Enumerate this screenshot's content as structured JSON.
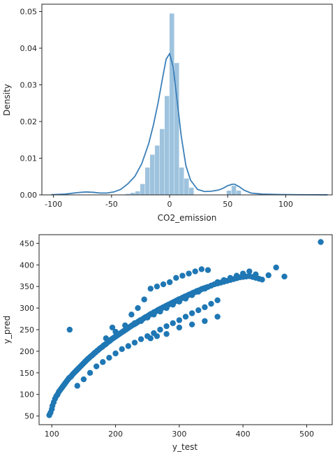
{
  "colors": {
    "hist_fill": "#9ec3de",
    "kde_line": "#3a7fb8",
    "scatter_point": "#1f77b4",
    "axis": "#222222"
  },
  "chart_data": [
    {
      "type": "histogram",
      "title": "",
      "xlabel": "CO2_emission",
      "ylabel": "Density",
      "xlim": [
        -110,
        140
      ],
      "ylim": [
        0,
        0.052
      ],
      "xticks": [
        -100,
        -50,
        0,
        50,
        100
      ],
      "yticks": [
        0.0,
        0.01,
        0.02,
        0.03,
        0.04,
        0.05
      ],
      "grid": false,
      "bin_width": 4.2,
      "bins": [
        {
          "x0": -38,
          "density": 0.0003
        },
        {
          "x0": -33.8,
          "density": 0.0006
        },
        {
          "x0": -29.6,
          "density": 0.001
        },
        {
          "x0": -25.4,
          "density": 0.003
        },
        {
          "x0": -21.2,
          "density": 0.0075
        },
        {
          "x0": -17,
          "density": 0.011
        },
        {
          "x0": -12.8,
          "density": 0.0135
        },
        {
          "x0": -8.6,
          "density": 0.018
        },
        {
          "x0": -4.4,
          "density": 0.027
        },
        {
          "x0": -0.2,
          "density": 0.0495
        },
        {
          "x0": 4,
          "density": 0.036
        },
        {
          "x0": 8.2,
          "density": 0.0075
        },
        {
          "x0": 12.4,
          "density": 0.0045
        },
        {
          "x0": 16.6,
          "density": 0.002
        },
        {
          "x0": 49,
          "density": 0.0012
        },
        {
          "x0": 53.2,
          "density": 0.0025
        },
        {
          "x0": 57.4,
          "density": 0.0012
        }
      ],
      "kde": {
        "x": [
          -102,
          -90,
          -80,
          -72,
          -66,
          -60,
          -54,
          -48,
          -42,
          -36,
          -30,
          -24,
          -18,
          -14,
          -10,
          -6,
          -3,
          0,
          3,
          6,
          10,
          14,
          18,
          24,
          30,
          36,
          42,
          46,
          50,
          54,
          56,
          60,
          64,
          70,
          80,
          95,
          110,
          125,
          136
        ],
        "y": [
          5e-05,
          0.0002,
          0.0006,
          0.0008,
          0.0007,
          0.0005,
          0.0005,
          0.0008,
          0.0015,
          0.003,
          0.005,
          0.0085,
          0.014,
          0.019,
          0.025,
          0.032,
          0.037,
          0.0385,
          0.035,
          0.027,
          0.016,
          0.008,
          0.004,
          0.0015,
          0.0009,
          0.001,
          0.0013,
          0.0018,
          0.0025,
          0.0029,
          0.0029,
          0.0022,
          0.0013,
          0.0005,
          0.0002,
          0.0001,
          5e-05,
          2e-05,
          1e-05
        ]
      }
    },
    {
      "type": "scatter",
      "title": "",
      "xlabel": "y_test",
      "ylabel": "y_pred",
      "xlim": [
        80,
        540
      ],
      "ylim": [
        30,
        470
      ],
      "xticks": [
        100,
        200,
        300,
        400,
        500
      ],
      "yticks": [
        50,
        100,
        150,
        200,
        250,
        300,
        350,
        400,
        450
      ],
      "grid": false,
      "x": [
        96,
        98,
        100,
        101,
        103,
        105,
        107,
        109,
        111,
        113,
        115,
        117,
        119,
        121,
        123,
        125,
        127,
        129,
        131,
        133,
        135,
        137,
        139,
        141,
        143,
        145,
        147,
        149,
        151,
        153,
        155,
        157,
        159,
        161,
        163,
        165,
        167,
        169,
        171,
        173,
        175,
        177,
        179,
        181,
        183,
        185,
        187,
        189,
        191,
        193,
        195,
        197,
        199,
        201,
        203,
        205,
        207,
        209,
        211,
        213,
        215,
        217,
        219,
        221,
        223,
        225,
        227,
        229,
        231,
        233,
        235,
        237,
        239,
        241,
        243,
        245,
        247,
        249,
        251,
        253,
        255,
        257,
        259,
        261,
        263,
        265,
        267,
        269,
        271,
        273,
        275,
        277,
        279,
        281,
        283,
        285,
        287,
        289,
        291,
        293,
        295,
        297,
        299,
        301,
        303,
        305,
        307,
        309,
        311,
        313,
        315,
        317,
        319,
        321,
        323,
        325,
        327,
        329,
        331,
        333,
        335,
        337,
        339,
        341,
        343,
        345,
        350,
        355,
        360,
        365,
        370,
        375,
        380,
        385,
        390,
        395,
        400,
        405,
        410,
        415,
        420,
        425,
        430,
        128,
        185,
        195,
        200,
        215,
        225,
        235,
        245,
        255,
        265,
        275,
        285,
        295,
        305,
        315,
        325,
        335,
        345,
        255,
        265,
        280,
        300,
        320,
        340,
        360,
        140,
        150,
        160,
        170,
        180,
        190,
        200,
        210,
        220,
        230,
        240,
        250,
        260,
        270,
        280,
        290,
        300,
        310,
        320,
        330,
        340,
        350,
        360,
        230,
        240,
        250,
        260,
        270,
        280,
        290,
        300,
        310,
        320,
        330,
        340,
        350,
        360,
        370,
        380,
        390,
        400,
        410,
        420,
        440,
        452,
        465,
        522
      ],
      "y": [
        52,
        58,
        66,
        74,
        82,
        90,
        96,
        100,
        106,
        110,
        114,
        118,
        122,
        126,
        130,
        134,
        138,
        140,
        143,
        147,
        150,
        153,
        156,
        159,
        162,
        165,
        168,
        171,
        174,
        177,
        180,
        183,
        185,
        188,
        190,
        193,
        196,
        198,
        201,
        203,
        206,
        208,
        210,
        213,
        215,
        217,
        220,
        222,
        224,
        227,
        229,
        231,
        233,
        235,
        237,
        239,
        241,
        243,
        245,
        247,
        249,
        251,
        253,
        255,
        257,
        259,
        261,
        262,
        264,
        266,
        268,
        270,
        272,
        273,
        275,
        277,
        279,
        280,
        282,
        284,
        286,
        287,
        289,
        291,
        292,
        294,
        296,
        297,
        299,
        300,
        302,
        303,
        305,
        306,
        308,
        309,
        311,
        312,
        314,
        315,
        317,
        318,
        320,
        321,
        322,
        324,
        325,
        327,
        328,
        329,
        331,
        332,
        333,
        335,
        336,
        337,
        339,
        340,
        341,
        342,
        344,
        345,
        346,
        347,
        348,
        349,
        352,
        355,
        357,
        359,
        361,
        363,
        365,
        367,
        369,
        371,
        372,
        373,
        374,
        372,
        370,
        368,
        366,
        250,
        230,
        255,
        245,
        260,
        285,
        300,
        320,
        345,
        350,
        355,
        360,
        370,
        375,
        380,
        385,
        390,
        388,
        230,
        235,
        240,
        255,
        262,
        270,
        280,
        120,
        135,
        150,
        165,
        175,
        185,
        195,
        205,
        212,
        220,
        228,
        235,
        242,
        250,
        258,
        265,
        272,
        280,
        288,
        295,
        302,
        310,
        318,
        265,
        270,
        278,
        285,
        292,
        300,
        308,
        315,
        322,
        330,
        338,
        345,
        352,
        360,
        365,
        370,
        375,
        380,
        385,
        378,
        376,
        394,
        373,
        453
      ]
    }
  ]
}
